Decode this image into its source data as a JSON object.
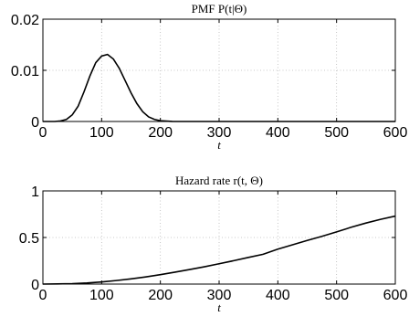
{
  "chart_data": [
    {
      "type": "line",
      "title": "PMF P(t|Θ)",
      "xlabel": "t",
      "ylabel": "",
      "xlim": [
        0,
        600
      ],
      "ylim": [
        0,
        0.02
      ],
      "xticks": [
        "0",
        "100",
        "200",
        "300",
        "400",
        "500",
        "600"
      ],
      "yticks": [
        "0",
        "0.01",
        "0.02"
      ],
      "grid": true,
      "series": [
        {
          "x": [
            0,
            20,
            30,
            40,
            50,
            60,
            70,
            80,
            90,
            100,
            110,
            120,
            130,
            140,
            150,
            160,
            170,
            180,
            190,
            200,
            220,
            250,
            300,
            400,
            500,
            600
          ],
          "y": [
            0,
            0,
            0.0001,
            0.0004,
            0.0013,
            0.003,
            0.0058,
            0.0089,
            0.0115,
            0.0128,
            0.0131,
            0.0122,
            0.0104,
            0.008,
            0.0056,
            0.0035,
            0.0019,
            0.0009,
            0.0004,
            0.00015,
            2e-05,
            0,
            0,
            0,
            0,
            0
          ]
        }
      ]
    },
    {
      "type": "line",
      "title": "Hazard rate r(t, Θ)",
      "xlabel": "t",
      "ylabel": "",
      "xlim": [
        0,
        600
      ],
      "ylim": [
        0,
        1
      ],
      "xticks": [
        "0",
        "100",
        "200",
        "300",
        "400",
        "500",
        "600"
      ],
      "yticks": [
        "0",
        "0.5",
        "1"
      ],
      "grid": true,
      "series": [
        {
          "x": [
            0,
            25,
            50,
            75,
            100,
            125,
            150,
            175,
            200,
            225,
            250,
            275,
            300,
            325,
            350,
            375,
            400,
            425,
            450,
            475,
            500,
            525,
            550,
            575,
            600
          ],
          "y": [
            0,
            0.002,
            0.005,
            0.012,
            0.023,
            0.038,
            0.056,
            0.077,
            0.101,
            0.128,
            0.156,
            0.186,
            0.218,
            0.251,
            0.286,
            0.32,
            0.375,
            0.422,
            0.468,
            0.512,
            0.56,
            0.61,
            0.655,
            0.695,
            0.73
          ]
        }
      ]
    }
  ]
}
